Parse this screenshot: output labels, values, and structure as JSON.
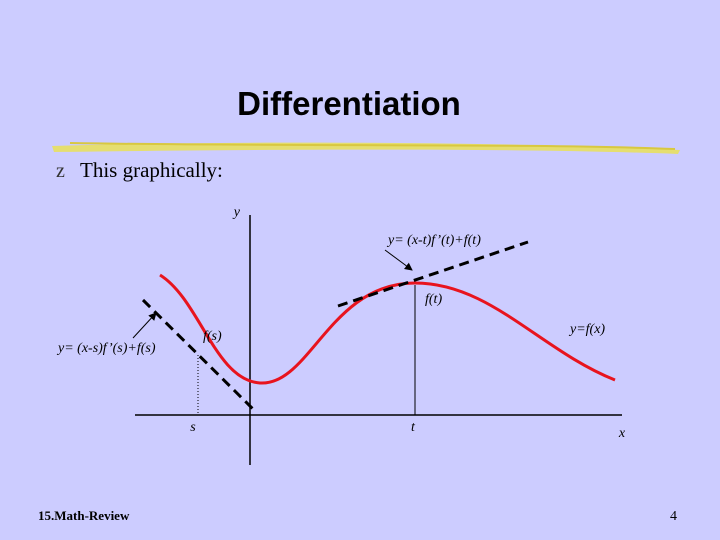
{
  "title": "Differentiation",
  "bullet": {
    "marker": "z",
    "text": "This graphically:"
  },
  "diagram": {
    "y_axis_label": "y",
    "x_axis_label": "x",
    "s_label": "s",
    "t_label": "t",
    "fs_label": "f(s)",
    "ft_label": "f(t)",
    "curve_label": "y=f(x)",
    "tangent_s_label": "y= (x-s)f’(s)+f(s)",
    "tangent_t_label": "y= (x-t)f’(t)+f(t)"
  },
  "footer": {
    "source": "15.Math-Review",
    "page": "4"
  }
}
